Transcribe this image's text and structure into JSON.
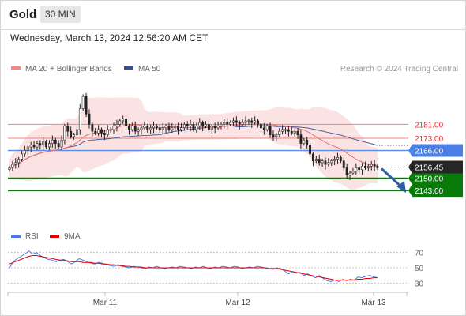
{
  "header": {
    "symbol": "Gold",
    "timeframe": "30 MIN"
  },
  "datetime": "Wednesday, March 13, 2024 12:56:20 AM CET",
  "legend": {
    "ma20": "MA 20 + Bollinger Bands",
    "ma50": "MA 50",
    "credit": "Research © 2024 Trading Central",
    "rsi": "RSI",
    "ma9": "9MA"
  },
  "colors": {
    "candle": "#222222",
    "ma20": "#e46e6e",
    "band": "#fbdcdc",
    "ma50": "#4d5e9e",
    "level_red": "#f08080",
    "pivot_blue": "#5b8ff0",
    "support_green": "#0a7a0a",
    "arrow": "#2d5ea8",
    "rsi": "#4a78e6",
    "rsi_ma": "#e00000"
  },
  "chart_data": [
    {
      "type": "candlestick",
      "title": "Gold",
      "timeframe": "30 MIN",
      "x_labels": [
        "Mar 11",
        "Mar 12",
        "Mar 13"
      ],
      "ylim": [
        2139,
        2207
      ],
      "levels": [
        {
          "value": 2181.0,
          "label": "2181.00",
          "kind": "resistance",
          "color": "#f08080"
        },
        {
          "value": 2173.0,
          "label": "2173.00",
          "kind": "resistance",
          "color": "#f08080"
        },
        {
          "value": 2166.0,
          "label": "2166.00",
          "kind": "pivot",
          "color": "#5b8ff0"
        },
        {
          "value": 2150.0,
          "label": "2150.00",
          "kind": "support",
          "color": "#0a7a0a"
        },
        {
          "value": 2143.0,
          "label": "2143.00",
          "kind": "support",
          "color": "#0a7a0a"
        }
      ],
      "last_price": {
        "value": 2156.45,
        "label": "2156.45"
      },
      "close": [
        2156,
        2158,
        2159,
        2161,
        2164,
        2166,
        2168,
        2169,
        2168,
        2170,
        2169,
        2171,
        2168,
        2170,
        2172,
        2170,
        2168,
        2172,
        2180,
        2177,
        2174,
        2175,
        2178,
        2190,
        2197,
        2187,
        2181,
        2177,
        2176,
        2178,
        2176,
        2175,
        2178,
        2178,
        2180,
        2181,
        2183,
        2184,
        2180,
        2178,
        2180,
        2177,
        2178,
        2179,
        2180,
        2178,
        2179,
        2180,
        2179,
        2178,
        2179,
        2180,
        2178,
        2179,
        2180,
        2178,
        2179,
        2181,
        2180,
        2181,
        2178,
        2180,
        2182,
        2180,
        2181,
        2178,
        2180,
        2179,
        2180,
        2181,
        2182,
        2181,
        2182,
        2183,
        2182,
        2181,
        2182,
        2183,
        2183,
        2182,
        2183,
        2181,
        2179,
        2178,
        2180,
        2175,
        2174,
        2175,
        2177,
        2178,
        2178,
        2177,
        2176,
        2177,
        2175,
        2170,
        2172,
        2169,
        2164,
        2160,
        2161,
        2159,
        2160,
        2158,
        2159,
        2160,
        2161,
        2162,
        2160,
        2156,
        2152,
        2153,
        2154,
        2156,
        2155,
        2157,
        2156,
        2157,
        2158,
        2157,
        2156
      ]
    },
    {
      "type": "line",
      "title": "RSI",
      "series": [
        {
          "name": "RSI"
        },
        {
          "name": "9MA"
        }
      ],
      "ylim": [
        20,
        80
      ],
      "yticks": [
        30,
        50,
        70
      ],
      "rsi": [
        50,
        58,
        62,
        65,
        68,
        72,
        68,
        70,
        66,
        63,
        61,
        60,
        58,
        60,
        61,
        58,
        55,
        58,
        62,
        60,
        58,
        56,
        55,
        57,
        56,
        54,
        53,
        52,
        54,
        52,
        51,
        50,
        52,
        51,
        50,
        49,
        51,
        50,
        52,
        50,
        49,
        50,
        51,
        50,
        52,
        51,
        50,
        49,
        51,
        50,
        52,
        50,
        49,
        51,
        50,
        52,
        51,
        50,
        52,
        51,
        49,
        50,
        51,
        50,
        52,
        51,
        50,
        49,
        48,
        50,
        49,
        46,
        42,
        45,
        43,
        44,
        40,
        42,
        39,
        37,
        40,
        36,
        33,
        32,
        34,
        32,
        35,
        33,
        35,
        34,
        38,
        37,
        39,
        40,
        38,
        37
      ],
      "ma9": [
        55,
        57,
        59,
        61,
        63,
        65,
        66,
        66,
        65,
        64,
        63,
        62,
        61,
        60,
        60,
        59,
        58,
        58,
        58,
        57,
        57,
        57,
        56,
        56,
        55,
        55,
        54,
        54,
        53,
        53,
        52,
        52,
        51,
        51,
        51,
        50,
        50,
        50,
        50,
        50,
        50,
        50,
        50,
        50,
        50,
        50,
        50,
        50,
        50,
        50,
        50,
        50,
        50,
        50,
        50,
        50,
        50,
        50,
        50,
        50,
        50,
        50,
        50,
        50,
        50,
        50,
        50,
        49,
        49,
        49,
        48,
        47,
        46,
        45,
        44,
        43,
        42,
        41,
        40,
        39,
        38,
        37,
        36,
        35,
        34,
        34,
        34,
        34,
        34,
        34,
        35,
        35,
        36,
        36,
        37,
        37
      ]
    }
  ]
}
